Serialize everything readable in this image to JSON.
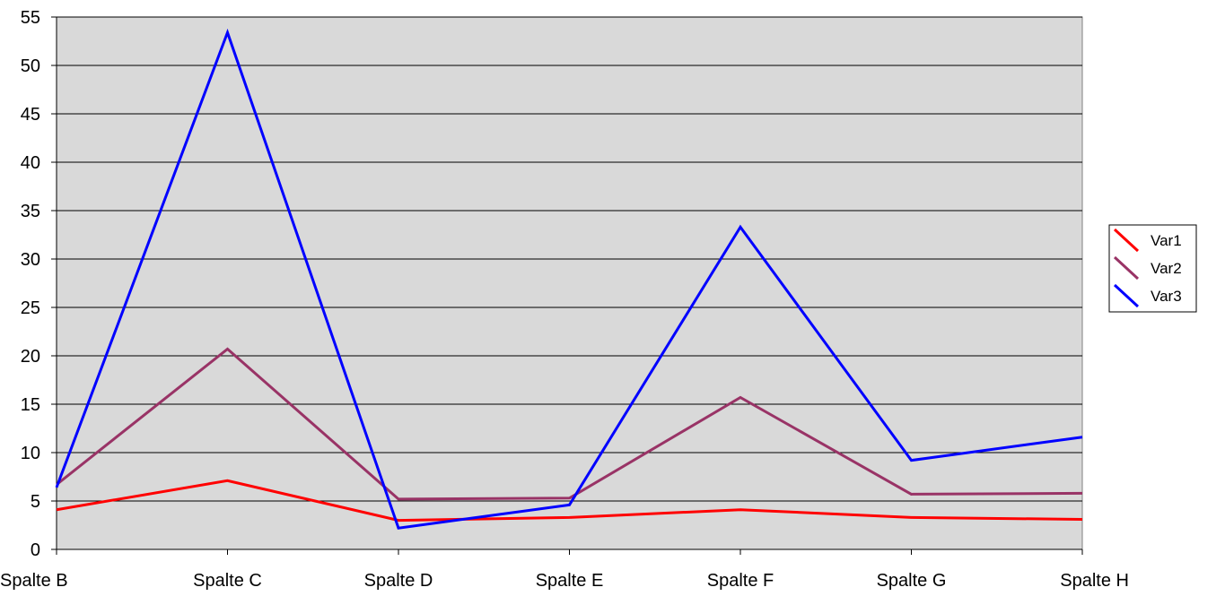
{
  "chart_data": {
    "type": "line",
    "title": "",
    "xlabel": "",
    "ylabel": "",
    "categories": [
      "Spalte B",
      "Spalte C",
      "Spalte D",
      "Spalte E",
      "Spalte F",
      "Spalte G",
      "Spalte H"
    ],
    "ylim": [
      0,
      55
    ],
    "yticks": [
      0,
      5,
      10,
      15,
      20,
      25,
      30,
      35,
      40,
      45,
      50,
      55
    ],
    "grid": "horizontal",
    "plot_background": "#d9d9d9",
    "legend_position": "right",
    "series": [
      {
        "name": "Var1",
        "color": "#ff0000",
        "values": [
          4.1,
          7.1,
          3.0,
          3.3,
          4.1,
          3.3,
          3.1
        ]
      },
      {
        "name": "Var2",
        "color": "#993366",
        "values": [
          6.7,
          20.7,
          5.2,
          5.3,
          15.7,
          5.7,
          5.8
        ]
      },
      {
        "name": "Var3",
        "color": "#0000ff",
        "values": [
          6.4,
          53.4,
          2.2,
          4.6,
          33.3,
          9.2,
          11.6
        ]
      }
    ]
  }
}
